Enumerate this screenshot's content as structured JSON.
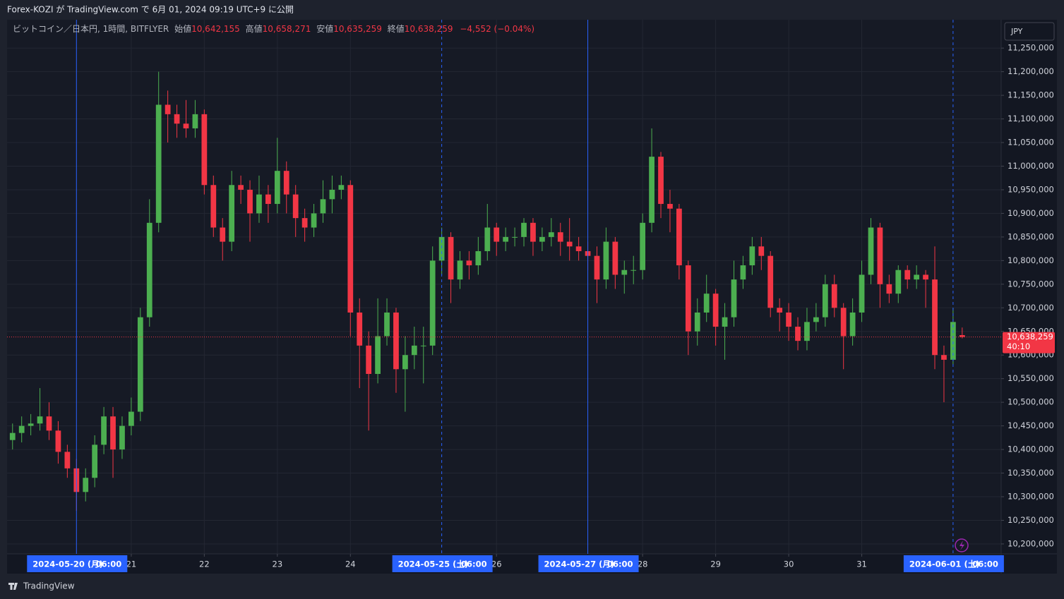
{
  "chart_data": {
    "type": "candlestick",
    "header": "Forex-KOZI が TradingView.com で 6月 01, 2024 09:19 UTC+9 に公開",
    "legend": {
      "symbol": "ビットコイン／日本円, 1時間, BITFLYER",
      "open_label": "始値",
      "open": "10,642,155",
      "high_label": "高値",
      "high": "10,658,271",
      "low_label": "安値",
      "low": "10,635,259",
      "close_label": "終値",
      "close": "10,638,259",
      "change": "−4,552 (−0.04%)"
    },
    "currency": "JPY",
    "footer": "TradingView",
    "up_color": "#4caf50",
    "down_color": "#f23645",
    "grid": true,
    "x": [
      "2024-05-19 09:00",
      "2024-05-19 12:00",
      "2024-05-19 15:00",
      "2024-05-19 18:00",
      "2024-05-19 21:00",
      "2024-05-20 00:00",
      "2024-05-20 03:00",
      "2024-05-20 06:00",
      "2024-05-20 09:00",
      "2024-05-20 12:00",
      "2024-05-20 15:00",
      "2024-05-20 18:00",
      "2024-05-20 21:00",
      "2024-05-21 00:00",
      "2024-05-21 03:00",
      "2024-05-21 06:00",
      "2024-05-21 09:00",
      "2024-05-21 12:00",
      "2024-05-21 15:00",
      "2024-05-21 18:00",
      "2024-05-21 21:00",
      "2024-05-22 00:00",
      "2024-05-22 03:00",
      "2024-05-22 06:00",
      "2024-05-22 09:00",
      "2024-05-22 12:00",
      "2024-05-22 15:00",
      "2024-05-22 18:00",
      "2024-05-22 21:00",
      "2024-05-23 00:00",
      "2024-05-23 03:00",
      "2024-05-23 06:00",
      "2024-05-23 09:00",
      "2024-05-23 12:00",
      "2024-05-23 15:00",
      "2024-05-23 18:00",
      "2024-05-23 21:00",
      "2024-05-24 00:00",
      "2024-05-24 03:00",
      "2024-05-24 06:00",
      "2024-05-24 09:00",
      "2024-05-24 12:00",
      "2024-05-24 15:00",
      "2024-05-24 18:00",
      "2024-05-24 21:00",
      "2024-05-25 00:00",
      "2024-05-25 03:00",
      "2024-05-25 06:00",
      "2024-05-25 09:00",
      "2024-05-25 12:00",
      "2024-05-25 15:00",
      "2024-05-25 18:00",
      "2024-05-25 21:00",
      "2024-05-26 00:00",
      "2024-05-26 03:00",
      "2024-05-26 06:00",
      "2024-05-26 09:00",
      "2024-05-26 12:00",
      "2024-05-26 15:00",
      "2024-05-26 18:00",
      "2024-05-26 21:00",
      "2024-05-27 00:00",
      "2024-05-27 03:00",
      "2024-05-27 06:00",
      "2024-05-27 09:00",
      "2024-05-27 12:00",
      "2024-05-27 15:00",
      "2024-05-27 18:00",
      "2024-05-27 21:00",
      "2024-05-28 00:00",
      "2024-05-28 03:00",
      "2024-05-28 06:00",
      "2024-05-28 09:00",
      "2024-05-28 12:00",
      "2024-05-28 15:00",
      "2024-05-28 18:00",
      "2024-05-28 21:00",
      "2024-05-29 00:00",
      "2024-05-29 03:00",
      "2024-05-29 06:00",
      "2024-05-29 09:00",
      "2024-05-29 12:00",
      "2024-05-29 15:00",
      "2024-05-29 18:00",
      "2024-05-29 21:00",
      "2024-05-30 00:00",
      "2024-05-30 03:00",
      "2024-05-30 06:00",
      "2024-05-30 09:00",
      "2024-05-30 12:00",
      "2024-05-30 15:00",
      "2024-05-30 18:00",
      "2024-05-30 21:00",
      "2024-05-31 00:00",
      "2024-05-31 03:00",
      "2024-05-31 06:00",
      "2024-05-31 09:00",
      "2024-05-31 12:00",
      "2024-05-31 15:00",
      "2024-05-31 18:00",
      "2024-05-31 21:00",
      "2024-06-01 00:00",
      "2024-06-01 03:00",
      "2024-06-01 06:00",
      "2024-06-01 09:00"
    ],
    "open": [
      10420000,
      10435000,
      10450000,
      10455000,
      10470000,
      10440000,
      10395000,
      10360000,
      10310000,
      10340000,
      10410000,
      10470000,
      10400000,
      10450000,
      10480000,
      10680000,
      10880000,
      11130000,
      11110000,
      11090000,
      11080000,
      11110000,
      10960000,
      10870000,
      10840000,
      10960000,
      10950000,
      10900000,
      10940000,
      10920000,
      10990000,
      10940000,
      10890000,
      10870000,
      10900000,
      10930000,
      10950000,
      10960000,
      10690000,
      10620000,
      10560000,
      10640000,
      10690000,
      10570000,
      10600000,
      10620000,
      10620000,
      10800000,
      10850000,
      10760000,
      10800000,
      10790000,
      10820000,
      10870000,
      10840000,
      10850000,
      10850000,
      10880000,
      10840000,
      10850000,
      10860000,
      10840000,
      10830000,
      10820000,
      10810000,
      10760000,
      10840000,
      10770000,
      10780000,
      10780000,
      10880000,
      11020000,
      10920000,
      10910000,
      10790000,
      10650000,
      10690000,
      10730000,
      10660000,
      10680000,
      10760000,
      10790000,
      10830000,
      10810000,
      10700000,
      10690000,
      10660000,
      10630000,
      10670000,
      10680000,
      10750000,
      10700000,
      10640000,
      10690000,
      10770000,
      10870000,
      10750000,
      10730000,
      10780000,
      10760000,
      10770000,
      10760000,
      10600000,
      10590000,
      10642155
    ],
    "high": [
      10455000,
      10470000,
      10475000,
      10530000,
      10500000,
      10460000,
      10410000,
      10380000,
      10360000,
      10430000,
      10490000,
      10490000,
      10470000,
      10510000,
      10700000,
      10930000,
      11200000,
      11160000,
      11130000,
      11140000,
      11140000,
      11120000,
      10980000,
      10890000,
      10990000,
      10980000,
      10970000,
      10980000,
      10960000,
      11060000,
      11010000,
      10960000,
      10910000,
      10920000,
      10970000,
      10980000,
      10980000,
      10970000,
      10720000,
      10650000,
      10720000,
      10720000,
      10700000,
      10640000,
      10660000,
      10660000,
      10830000,
      10870000,
      10860000,
      10820000,
      10820000,
      10850000,
      10920000,
      10880000,
      10870000,
      10870000,
      10890000,
      10890000,
      10870000,
      10890000,
      10880000,
      10890000,
      10850000,
      10840000,
      10830000,
      10870000,
      10850000,
      10800000,
      10810000,
      10900000,
      11080000,
      11030000,
      10950000,
      10920000,
      10800000,
      10720000,
      10770000,
      10740000,
      10710000,
      10800000,
      10810000,
      10850000,
      10850000,
      10820000,
      10720000,
      10710000,
      10680000,
      10700000,
      10710000,
      10770000,
      10770000,
      10710000,
      10720000,
      10800000,
      10890000,
      10880000,
      10770000,
      10790000,
      10790000,
      10790000,
      10780000,
      10830000,
      10620000,
      10700000,
      10658271
    ],
    "low": [
      10400000,
      10415000,
      10430000,
      10440000,
      10420000,
      10370000,
      10340000,
      10270000,
      10290000,
      10320000,
      10390000,
      10340000,
      10380000,
      10430000,
      10460000,
      10660000,
      10860000,
      11050000,
      11060000,
      11060000,
      11060000,
      10940000,
      10850000,
      10800000,
      10820000,
      10920000,
      10840000,
      10880000,
      10880000,
      10900000,
      10900000,
      10850000,
      10840000,
      10850000,
      10880000,
      10900000,
      10930000,
      10640000,
      10530000,
      10440000,
      10540000,
      10620000,
      10520000,
      10480000,
      10570000,
      10540000,
      10600000,
      10770000,
      10710000,
      10740000,
      10760000,
      10770000,
      10800000,
      10810000,
      10820000,
      10830000,
      10830000,
      10810000,
      10820000,
      10830000,
      10810000,
      10800000,
      10800000,
      10780000,
      10710000,
      10740000,
      10740000,
      10730000,
      10750000,
      10760000,
      10860000,
      10890000,
      10860000,
      10760000,
      10600000,
      10620000,
      10670000,
      10620000,
      10590000,
      10660000,
      10740000,
      10770000,
      10780000,
      10680000,
      10650000,
      10630000,
      10610000,
      10610000,
      10650000,
      10660000,
      10680000,
      10570000,
      10620000,
      10670000,
      10750000,
      10700000,
      10710000,
      10710000,
      10740000,
      10740000,
      10700000,
      10570000,
      10500000,
      10580000,
      10635259
    ],
    "close": [
      10435000,
      10450000,
      10455000,
      10470000,
      10440000,
      10395000,
      10360000,
      10310000,
      10340000,
      10410000,
      10470000,
      10400000,
      10450000,
      10480000,
      10680000,
      10880000,
      11130000,
      11110000,
      11090000,
      11080000,
      11110000,
      10960000,
      10870000,
      10840000,
      10960000,
      10950000,
      10900000,
      10940000,
      10920000,
      10990000,
      10940000,
      10890000,
      10870000,
      10900000,
      10930000,
      10950000,
      10960000,
      10690000,
      10620000,
      10560000,
      10640000,
      10690000,
      10570000,
      10600000,
      10620000,
      10620000,
      10800000,
      10850000,
      10760000,
      10800000,
      10790000,
      10820000,
      10870000,
      10840000,
      10850000,
      10850000,
      10880000,
      10840000,
      10850000,
      10860000,
      10840000,
      10830000,
      10820000,
      10810000,
      10760000,
      10840000,
      10770000,
      10780000,
      10780000,
      10880000,
      11020000,
      10920000,
      10910000,
      10790000,
      10650000,
      10690000,
      10730000,
      10660000,
      10680000,
      10760000,
      10790000,
      10830000,
      10810000,
      10700000,
      10690000,
      10660000,
      10630000,
      10670000,
      10680000,
      10750000,
      10700000,
      10640000,
      10690000,
      10770000,
      10870000,
      10750000,
      10730000,
      10780000,
      10760000,
      10770000,
      10760000,
      10600000,
      10590000,
      10670000,
      10638259
    ],
    "price_tag": {
      "label": "10,638,259",
      "countdown": "40:10"
    },
    "xlim": [
      "2024-05-19 07:12",
      "2024-06-01 21:48"
    ],
    "xticks": [
      {
        "value": "2024-05-21 00:00",
        "label": "21"
      },
      {
        "value": "2024-05-22 00:00",
        "label": "22"
      },
      {
        "value": "2024-05-23 00:00",
        "label": "23"
      },
      {
        "value": "2024-05-24 00:00",
        "label": "24"
      },
      {
        "value": "2024-05-26 00:00",
        "label": "26"
      },
      {
        "value": "2024-05-28 00:00",
        "label": "28"
      },
      {
        "value": "2024-05-29 00:00",
        "label": "29"
      },
      {
        "value": "2024-05-30 00:00",
        "label": "30"
      },
      {
        "value": "2024-05-31 00:00",
        "label": "31"
      }
    ],
    "markers": [
      {
        "x": "2024-05-20 06:00",
        "date_label": "2024-05-20 (月)",
        "time_label": "06:00",
        "style": "solid"
      },
      {
        "x": "2024-05-25 06:00",
        "date_label": "2024-05-25 (土)",
        "time_label": "06:00",
        "style": "dashed"
      },
      {
        "x": "2024-05-27 06:00",
        "date_label": "2024-05-27 (月)",
        "time_label": "06:00",
        "style": "solid"
      },
      {
        "x": "2024-06-01 06:00",
        "date_label": "2024-06-01 (土)",
        "time_label": "06:00",
        "style": "dashed"
      }
    ],
    "ylim": [
      10179000,
      11310000
    ],
    "yticks": [
      {
        "value": 10200000,
        "label": "10,200,000"
      },
      {
        "value": 10250000,
        "label": "10,250,000"
      },
      {
        "value": 10300000,
        "label": "10,300,000"
      },
      {
        "value": 10350000,
        "label": "10,350,000"
      },
      {
        "value": 10400000,
        "label": "10,400,000"
      },
      {
        "value": 10450000,
        "label": "10,450,000"
      },
      {
        "value": 10500000,
        "label": "10,500,000"
      },
      {
        "value": 10550000,
        "label": "10,550,000"
      },
      {
        "value": 10600000,
        "label": "10,600,000"
      },
      {
        "value": 10650000,
        "label": "10,650,000"
      },
      {
        "value": 10700000,
        "label": "10,700,000"
      },
      {
        "value": 10750000,
        "label": "10,750,000"
      },
      {
        "value": 10800000,
        "label": "10,800,000"
      },
      {
        "value": 10850000,
        "label": "10,850,000"
      },
      {
        "value": 10900000,
        "label": "10,900,000"
      },
      {
        "value": 10950000,
        "label": "10,950,000"
      },
      {
        "value": 11000000,
        "label": "11,000,000"
      },
      {
        "value": 11050000,
        "label": "11,050,000"
      },
      {
        "value": 11100000,
        "label": "11,100,000"
      },
      {
        "value": 11150000,
        "label": "11,150,000"
      },
      {
        "value": 11200000,
        "label": "11,200,000"
      },
      {
        "value": 11250000,
        "label": "11,250,000"
      }
    ]
  }
}
